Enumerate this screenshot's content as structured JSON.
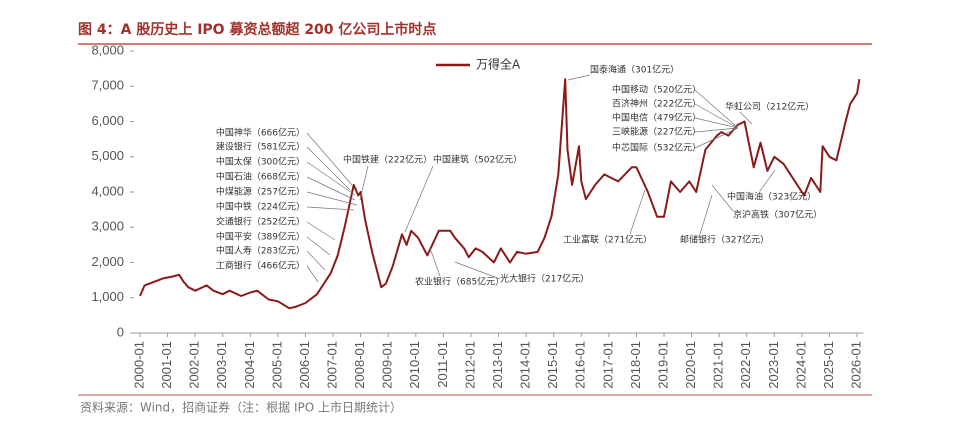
{
  "chart_data": {
    "type": "line",
    "title": "图 4：A 股历史上 IPO 募资总额超 200 亿公司上市时点",
    "source": "资料来源：Wind，招商证券（注：根据 IPO 上市日期统计）",
    "x": [
      "2000-01",
      "2000-03",
      "2000-07",
      "2000-11",
      "2001-03",
      "2001-06",
      "2001-08",
      "2001-10",
      "2002-01",
      "2002-06",
      "2002-09",
      "2003-01",
      "2003-04",
      "2003-09",
      "2004-01",
      "2004-04",
      "2004-09",
      "2005-01",
      "2005-06",
      "2005-09",
      "2006-01",
      "2006-06",
      "2006-12",
      "2007-03",
      "2007-06",
      "2007-10",
      "2007-12",
      "2008-01",
      "2008-03",
      "2008-06",
      "2008-10",
      "2008-12",
      "2009-03",
      "2009-07",
      "2009-09",
      "2009-11",
      "2010-02",
      "2010-06",
      "2010-11",
      "2011-04",
      "2011-06",
      "2011-10",
      "2011-12",
      "2012-03",
      "2012-06",
      "2012-11",
      "2013-02",
      "2013-06",
      "2013-09",
      "2014-01",
      "2014-06",
      "2014-09",
      "2014-12",
      "2015-03",
      "2015-06",
      "2015-07",
      "2015-09",
      "2015-12",
      "2016-01",
      "2016-03",
      "2016-07",
      "2016-11",
      "2017-05",
      "2017-11",
      "2018-01",
      "2018-06",
      "2018-10",
      "2019-01",
      "2019-04",
      "2019-08",
      "2019-12",
      "2020-03",
      "2020-07",
      "2020-12",
      "2021-02",
      "2021-05",
      "2021-09",
      "2021-12",
      "2022-04",
      "2022-07",
      "2022-10",
      "2023-01",
      "2023-05",
      "2023-10",
      "2024-02",
      "2024-05",
      "2024-09",
      "2024-10",
      "2025-01",
      "2025-04",
      "2025-08",
      "2025-10",
      "2026-01",
      "2026-02"
    ],
    "series": [
      {
        "name": "万得全A",
        "color": "#8b1a1a",
        "values": [
          1050,
          1350,
          1450,
          1550,
          1600,
          1650,
          1450,
          1300,
          1200,
          1350,
          1200,
          1100,
          1200,
          1050,
          1150,
          1200,
          950,
          900,
          700,
          750,
          850,
          1100,
          1700,
          2200,
          3000,
          4200,
          3900,
          4000,
          3200,
          2300,
          1300,
          1400,
          1900,
          2800,
          2500,
          2900,
          2700,
          2200,
          2900,
          2900,
          2700,
          2400,
          2150,
          2400,
          2300,
          2000,
          2400,
          2000,
          2300,
          2250,
          2300,
          2700,
          3300,
          4500,
          7200,
          5200,
          4200,
          5300,
          4300,
          3800,
          4200,
          4500,
          4300,
          4700,
          4700,
          4000,
          3300,
          3300,
          4300,
          4000,
          4300,
          4000,
          5200,
          5600,
          5700,
          5600,
          5900,
          6000,
          4700,
          5400,
          4600,
          5000,
          4800,
          4300,
          3900,
          4400,
          4000,
          5300,
          5000,
          4900,
          6000,
          6500,
          6800,
          7200
        ]
      }
    ],
    "xticks": [
      "2000-01",
      "2001-01",
      "2002-01",
      "2003-01",
      "2004-01",
      "2005-01",
      "2006-01",
      "2007-01",
      "2008-01",
      "2009-01",
      "2010-01",
      "2011-01",
      "2012-01",
      "2013-01",
      "2014-01",
      "2015-01",
      "2016-01",
      "2017-01",
      "2018-01",
      "2019-01",
      "2020-01",
      "2021-01",
      "2022-01",
      "2023-01",
      "2024-01",
      "2025-01",
      "2026-01"
    ],
    "ylim": [
      0,
      8000
    ],
    "yticks": [
      0,
      {
        "value": 1000,
        "label": "1,000"
      },
      {
        "value": 2000,
        "label": "2,000"
      },
      {
        "value": 3000,
        "label": "3,000"
      },
      {
        "value": 4000,
        "label": "4,000"
      },
      {
        "value": 5000,
        "label": "5,000"
      },
      {
        "value": 6000,
        "label": "6,000"
      },
      {
        "value": 7000,
        "label": "7,000"
      },
      {
        "value": 8000,
        "label": "8,000"
      }
    ],
    "annotations": [
      "中国神华（666亿元）",
      "建设银行（581亿元）",
      "中国太保（300亿元）",
      "中国石油（668亿元）",
      "中煤能源（257亿元）",
      "中国中铁（224亿元）",
      "交通银行（252亿元）",
      "中国平安（389亿元）",
      "中国人寿（283亿元）",
      "工商银行（466亿元）",
      "中国铁建（222亿元）",
      "中国建筑（502亿元）",
      "农业银行（685亿元）",
      "光大银行（217亿元）",
      "国泰海通（301亿元）",
      "工业富联（271亿元）",
      "中国移动（520亿元）",
      "百济神州（222亿元）",
      "中国电信（479亿元）",
      "三峡能源（227亿元）",
      "中芯国际（532亿元）",
      "华虹公司（212亿元）",
      "中国海油（323亿元）",
      "京沪高铁（307亿元）",
      "邮储银行（327亿元）"
    ]
  }
}
